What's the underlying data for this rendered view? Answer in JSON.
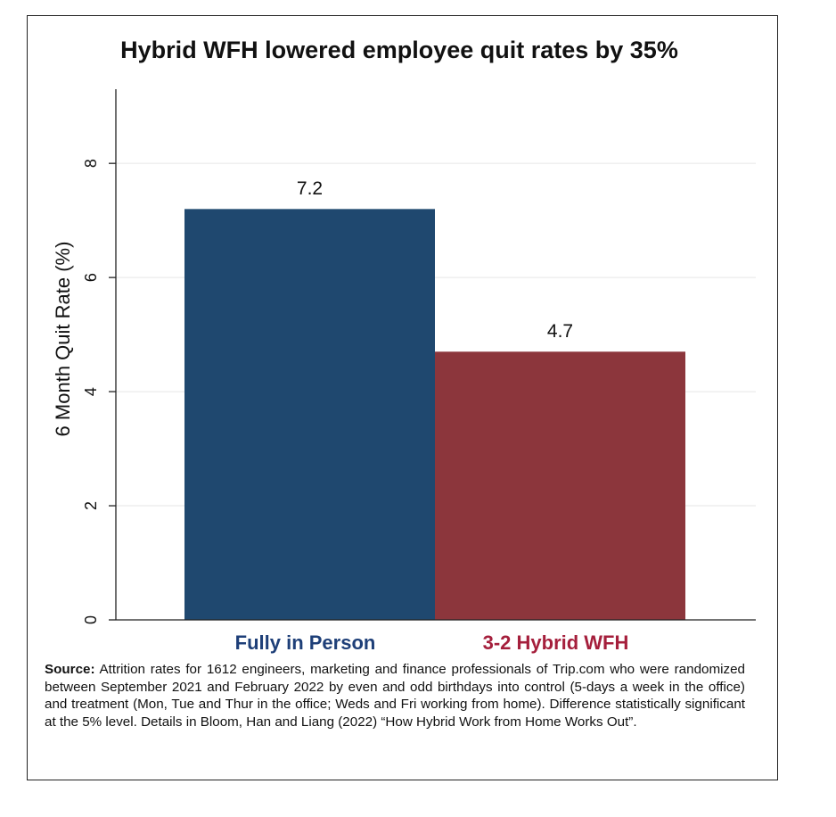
{
  "chart_data": {
    "type": "bar",
    "title": "Hybrid WFH lowered employee quit rates by 35%",
    "y_label": "6 Month Quit Rate (%)",
    "categories": [
      "Fully in Person",
      "3-2 Hybrid WFH"
    ],
    "values": [
      7.2,
      4.7
    ],
    "colors": [
      "#1f486f",
      "#8c363c"
    ],
    "category_label_colors": [
      "#1e3f78",
      "#a51f3c"
    ],
    "ylim": [
      0,
      9.3
    ],
    "yticks": [
      0,
      2,
      4,
      6,
      8
    ],
    "grid": true,
    "source_label": "Source:",
    "source_text": "Attrition rates for 1612 engineers, marketing and finance professionals of Trip.com who were randomized between September 2021 and February 2022 by even and odd birthdays into control (5-days a week in the office) and treatment (Mon, Tue and Thur in the office; Weds and Fri working from home). Difference statistically significant at the 5% level. Details in Bloom, Han and Liang (2022) “How Hybrid Work from Home Works Out”."
  }
}
